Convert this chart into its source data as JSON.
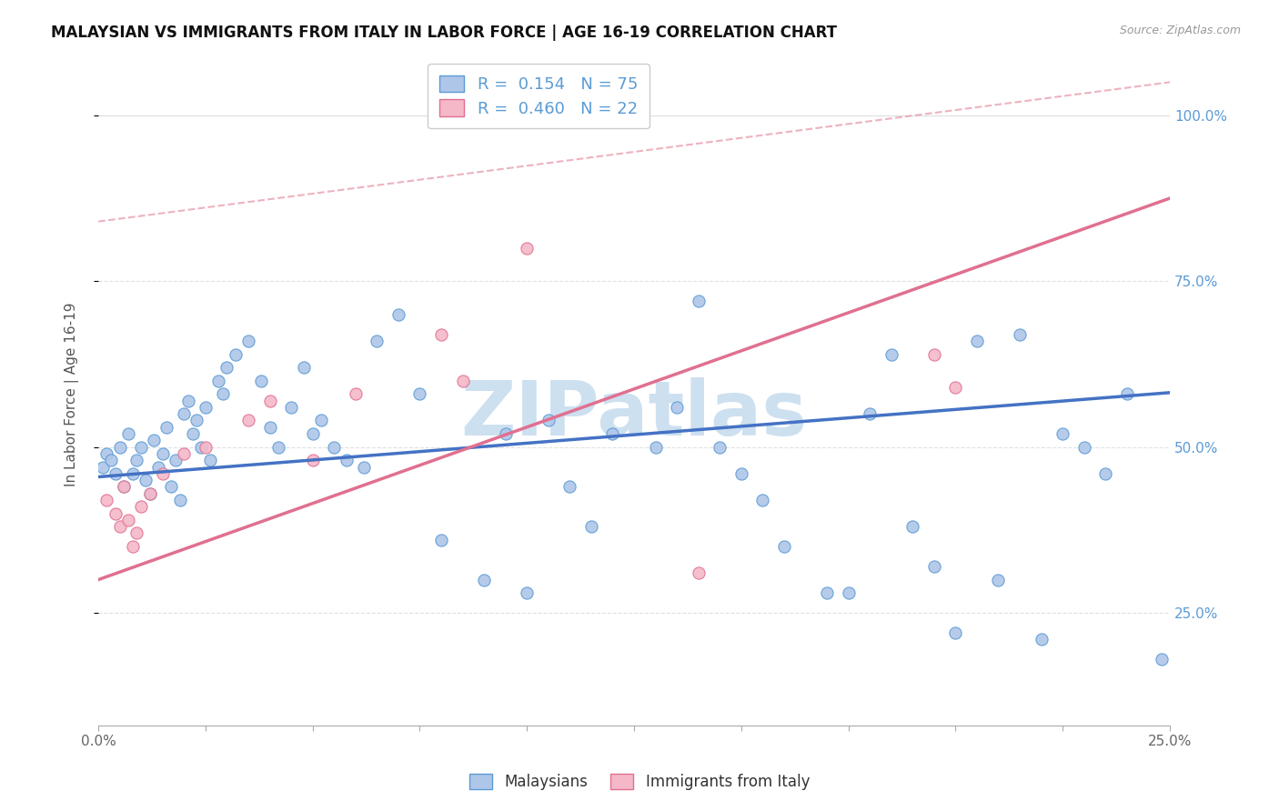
{
  "title": "MALAYSIAN VS IMMIGRANTS FROM ITALY IN LABOR FORCE | AGE 16-19 CORRELATION CHART",
  "source": "Source: ZipAtlas.com",
  "ylabel": "In Labor Force | Age 16-19",
  "xlim": [
    0.0,
    0.25
  ],
  "ylim": [
    0.08,
    1.08
  ],
  "yticks": [
    0.25,
    0.5,
    0.75,
    1.0
  ],
  "ytick_labels_right": [
    "25.0%",
    "50.0%",
    "75.0%",
    "100.0%"
  ],
  "xticks": [
    0.0,
    0.025,
    0.05,
    0.075,
    0.1,
    0.125,
    0.15,
    0.175,
    0.2,
    0.225,
    0.25
  ],
  "xtick_labels": [
    "0.0%",
    "",
    "",
    "",
    "",
    "",
    "",
    "",
    "",
    "",
    "25.0%"
  ],
  "watermark": "ZIPatlas",
  "legend_R_blue": "0.154",
  "legend_N_blue": "75",
  "legend_R_pink": "0.460",
  "legend_N_pink": "22",
  "blue_color": "#4472c4",
  "blue_scatter_face": "#aec6e8",
  "blue_scatter_edge": "#5b9bd5",
  "pink_color": "#e07090",
  "pink_scatter_face": "#f4b8c8",
  "pink_scatter_edge": "#e07090",
  "dash_color": "#e8a0b0",
  "background_color": "#ffffff",
  "grid_color": "#e0e0e0",
  "right_axis_color": "#5b9bd5",
  "title_fontsize": 12,
  "axis_label_fontsize": 11,
  "tick_fontsize": 11,
  "watermark_color": "#cde0f0",
  "watermark_fontsize": 60,
  "blue_line_y0": 0.455,
  "blue_line_y1": 0.582,
  "pink_line_y0": 0.3,
  "pink_line_y1": 0.875,
  "dash_line_x0": 0.0,
  "dash_line_x1": 0.25,
  "dash_line_y0": 0.84,
  "dash_line_y1": 1.05,
  "blue_x": [
    0.001,
    0.002,
    0.003,
    0.004,
    0.005,
    0.006,
    0.007,
    0.008,
    0.009,
    0.01,
    0.011,
    0.012,
    0.013,
    0.014,
    0.015,
    0.016,
    0.017,
    0.018,
    0.019,
    0.02,
    0.021,
    0.022,
    0.023,
    0.024,
    0.025,
    0.026,
    0.028,
    0.029,
    0.03,
    0.032,
    0.035,
    0.038,
    0.04,
    0.042,
    0.045,
    0.048,
    0.05,
    0.052,
    0.055,
    0.058,
    0.062,
    0.065,
    0.07,
    0.075,
    0.08,
    0.09,
    0.095,
    0.1,
    0.105,
    0.11,
    0.115,
    0.12,
    0.13,
    0.135,
    0.14,
    0.145,
    0.15,
    0.155,
    0.16,
    0.17,
    0.175,
    0.18,
    0.185,
    0.19,
    0.195,
    0.2,
    0.205,
    0.21,
    0.215,
    0.22,
    0.225,
    0.23,
    0.235,
    0.24,
    0.248
  ],
  "blue_y": [
    0.47,
    0.49,
    0.48,
    0.46,
    0.5,
    0.44,
    0.52,
    0.46,
    0.48,
    0.5,
    0.45,
    0.43,
    0.51,
    0.47,
    0.49,
    0.53,
    0.44,
    0.48,
    0.42,
    0.55,
    0.57,
    0.52,
    0.54,
    0.5,
    0.56,
    0.48,
    0.6,
    0.58,
    0.62,
    0.64,
    0.66,
    0.6,
    0.53,
    0.5,
    0.56,
    0.62,
    0.52,
    0.54,
    0.5,
    0.48,
    0.47,
    0.66,
    0.7,
    0.58,
    0.36,
    0.3,
    0.52,
    0.28,
    0.54,
    0.44,
    0.38,
    0.52,
    0.5,
    0.56,
    0.72,
    0.5,
    0.46,
    0.42,
    0.35,
    0.28,
    0.28,
    0.55,
    0.64,
    0.38,
    0.32,
    0.22,
    0.66,
    0.3,
    0.67,
    0.21,
    0.52,
    0.5,
    0.46,
    0.58,
    0.18
  ],
  "pink_x": [
    0.002,
    0.004,
    0.005,
    0.006,
    0.007,
    0.008,
    0.009,
    0.01,
    0.012,
    0.015,
    0.02,
    0.025,
    0.035,
    0.04,
    0.05,
    0.06,
    0.08,
    0.085,
    0.1,
    0.14,
    0.195,
    0.2
  ],
  "pink_y": [
    0.42,
    0.4,
    0.38,
    0.44,
    0.39,
    0.35,
    0.37,
    0.41,
    0.43,
    0.46,
    0.49,
    0.5,
    0.54,
    0.57,
    0.48,
    0.58,
    0.67,
    0.6,
    0.8,
    0.31,
    0.64,
    0.59
  ]
}
